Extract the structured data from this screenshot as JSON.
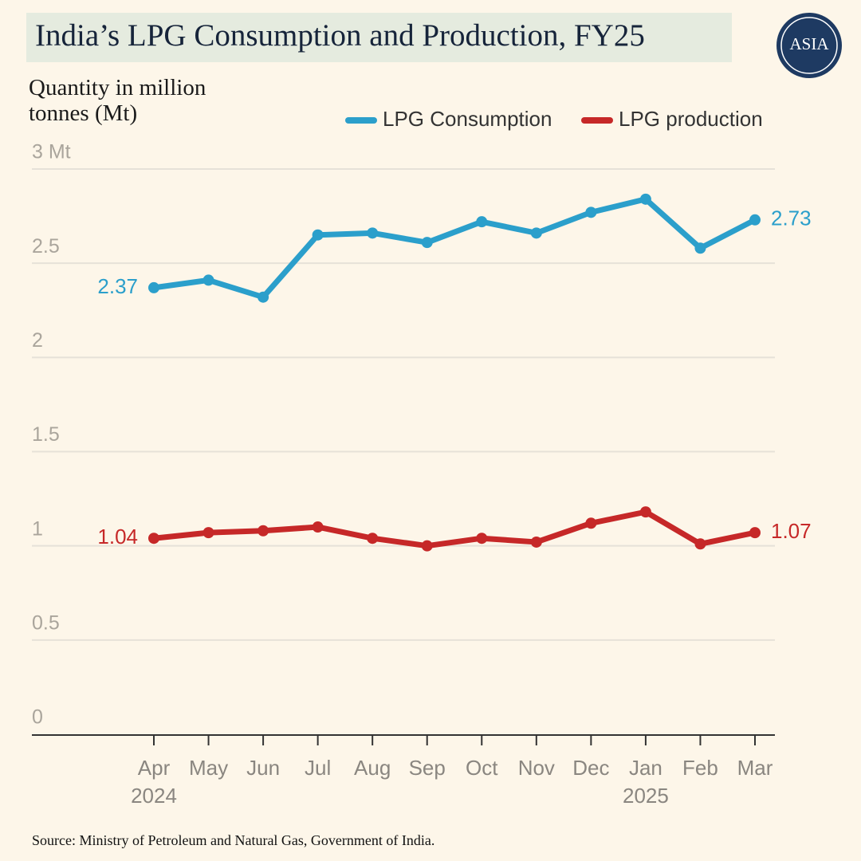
{
  "chart_data": {
    "type": "line",
    "title": "India’s LPG Consumption and Production, FY25",
    "y_axis_label": "Quantity in million tonnes (Mt)",
    "logo": "ASIA",
    "source": "Source: Ministry of Petroleum and Natural Gas, Government of India.",
    "categories": [
      "Apr",
      "May",
      "Jun",
      "Jul",
      "Aug",
      "Sep",
      "Oct",
      "Nov",
      "Dec",
      "Jan",
      "Feb",
      "Mar"
    ],
    "years": [
      "2024",
      null,
      null,
      null,
      null,
      null,
      null,
      null,
      null,
      "2025",
      null,
      null
    ],
    "series": [
      {
        "name": "LPG Consumption",
        "color": "#2b9fcb",
        "values": [
          2.37,
          2.41,
          2.32,
          2.65,
          2.66,
          2.61,
          2.72,
          2.66,
          2.77,
          2.84,
          2.58,
          2.73
        ],
        "value_labels": [
          "2.37",
          null,
          null,
          null,
          null,
          null,
          null,
          null,
          null,
          null,
          null,
          "2.73"
        ]
      },
      {
        "name": "LPG production",
        "color": "#c62828",
        "values": [
          1.04,
          1.07,
          1.08,
          1.1,
          1.04,
          1.0,
          1.04,
          1.02,
          1.12,
          1.18,
          1.01,
          1.07
        ],
        "value_labels": [
          "1.04",
          null,
          null,
          null,
          null,
          null,
          null,
          null,
          null,
          null,
          null,
          "1.07"
        ]
      }
    ],
    "ylim": [
      0,
      3
    ],
    "yticks": [
      0,
      0.5,
      1,
      1.5,
      2,
      2.5,
      {
        "value": 3,
        "label": "3 Mt"
      }
    ],
    "grid": true
  }
}
